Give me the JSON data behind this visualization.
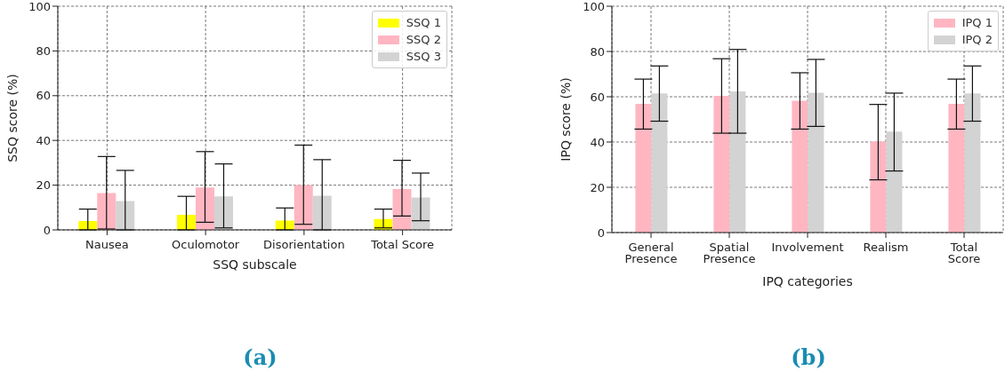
{
  "chart_data": [
    {
      "type": "bar",
      "xlabel": "SSQ subscale",
      "ylabel": "SSQ score (%)",
      "categories": [
        "Nausea",
        "Oculomotor",
        "Disorientation",
        "Total Score"
      ],
      "series": [
        {
          "name": "SSQ 1",
          "color": "#ffff00",
          "values": [
            4,
            6.7,
            4.2,
            4.9
          ],
          "errors": [
            [
              0,
              9.3
            ],
            [
              0,
              15
            ],
            [
              0,
              9.8
            ],
            [
              0.9,
              9.3
            ]
          ]
        },
        {
          "name": "SSQ 2",
          "color": "#ffb6c1",
          "values": [
            16.5,
            18.9,
            20,
            18.3
          ],
          "errors": [
            [
              0.4,
              32.8
            ],
            [
              3.4,
              35
            ],
            [
              2.5,
              37.9
            ],
            [
              6.2,
              31.1
            ]
          ]
        },
        {
          "name": "SSQ 3",
          "color": "#d3d3d3",
          "values": [
            12.9,
            15,
            15.3,
            14.5
          ],
          "errors": [
            [
              0,
              26.6
            ],
            [
              0.9,
              29.5
            ],
            [
              0,
              31.4
            ],
            [
              4.1,
              25.4
            ]
          ]
        }
      ],
      "ylim": [
        0,
        100
      ],
      "yticks": [
        0,
        20,
        40,
        60,
        80,
        100
      ],
      "grid": true,
      "legend": "top right",
      "annotations": [
        "(a)"
      ]
    },
    {
      "type": "bar",
      "xlabel": "IPQ categories",
      "ylabel": "IPQ score (%)",
      "categories": [
        "General Presence",
        "Spatial Presence",
        "Involvement",
        "Realism",
        "Total Score"
      ],
      "series": [
        {
          "name": "IPQ 1",
          "color": "#ffb6c1",
          "values": [
            56.9,
            60.4,
            58.2,
            40.2,
            56.9
          ],
          "errors": [
            [
              45.7,
              67.8
            ],
            [
              43.9,
              76.8
            ],
            [
              45.7,
              70.6
            ],
            [
              23.3,
              56.6
            ],
            [
              45.7,
              67.8
            ]
          ]
        },
        {
          "name": "IPQ 2",
          "color": "#d3d3d3",
          "values": [
            61.5,
            62.4,
            61.8,
            44.6,
            61.5
          ],
          "errors": [
            [
              49.2,
              73.6
            ],
            [
              43.9,
              80.9
            ],
            [
              46.9,
              76.5
            ],
            [
              27.2,
              61.6
            ],
            [
              49.2,
              73.6
            ]
          ]
        }
      ],
      "ylim": [
        0,
        100
      ],
      "yticks": [
        0,
        20,
        40,
        60,
        80,
        100
      ],
      "grid": true,
      "legend": "top right",
      "annotations": [
        "(b)"
      ]
    }
  ]
}
